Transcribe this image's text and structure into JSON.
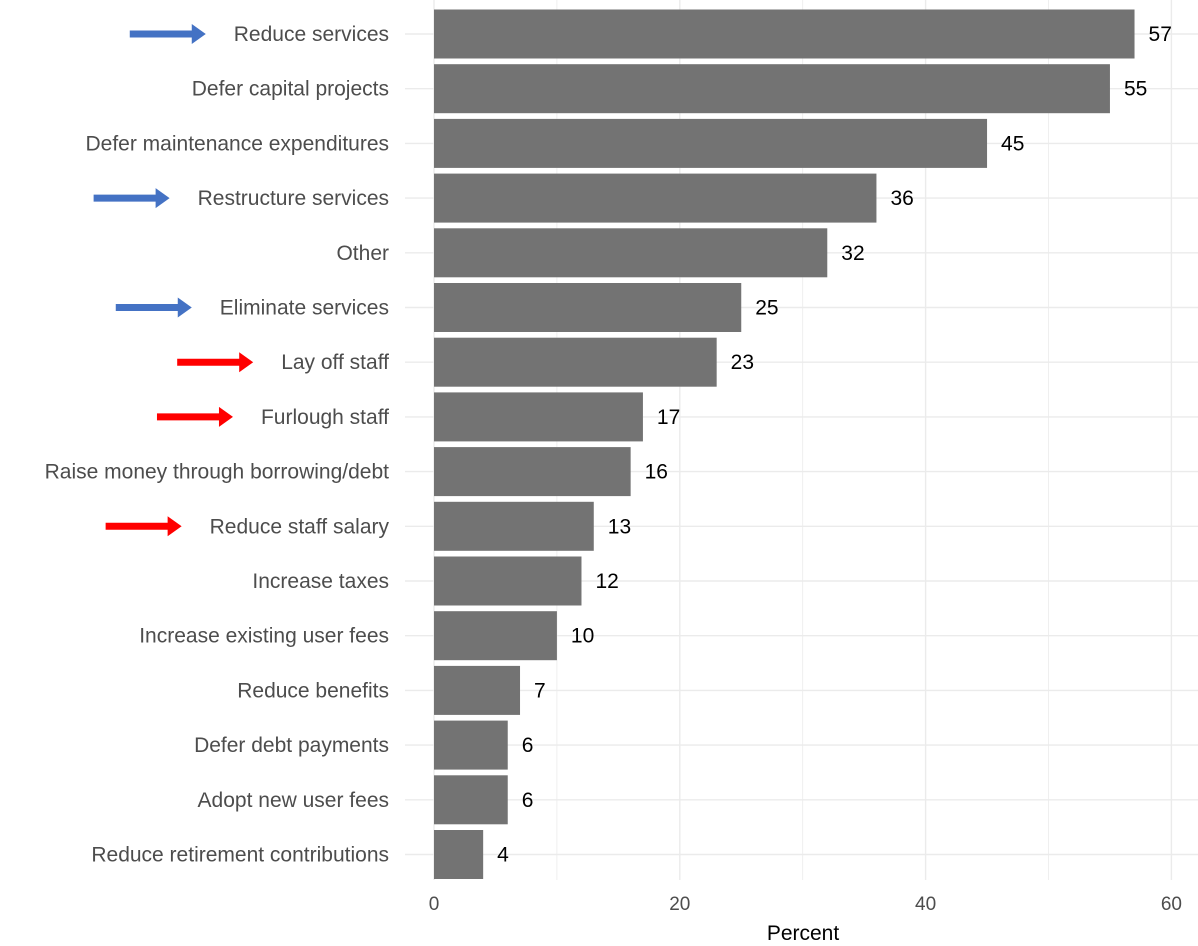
{
  "chart_data": {
    "type": "bar",
    "orientation": "horizontal",
    "categories": [
      "Reduce services",
      "Defer capital projects",
      "Defer maintenance expenditures",
      "Restructure services",
      "Other",
      "Eliminate services",
      "Lay off staff",
      "Furlough staff",
      "Raise money through borrowing/debt",
      "Reduce staff salary",
      "Increase taxes",
      "Increase existing user fees",
      "Reduce benefits",
      "Defer debt payments",
      "Adopt new user fees",
      "Reduce retirement contributions"
    ],
    "values": [
      57,
      55,
      45,
      36,
      32,
      25,
      23,
      17,
      16,
      13,
      12,
      10,
      7,
      6,
      6,
      4
    ],
    "data_labels": [
      "57",
      "55",
      "45",
      "36",
      "32",
      "25",
      "23",
      "17",
      "16",
      "13",
      "12",
      "10",
      "7",
      "6",
      "6",
      "4"
    ],
    "arrows": [
      "blue",
      "none",
      "none",
      "blue",
      "none",
      "blue",
      "red",
      "red",
      "none",
      "red",
      "none",
      "none",
      "none",
      "none",
      "none",
      "none"
    ],
    "xlabel": "Percent",
    "xlim": [
      0,
      62
    ],
    "xticks": [
      0,
      20,
      40,
      60
    ],
    "xtick_labels": [
      "0",
      "20",
      "40",
      "60"
    ],
    "grid": true,
    "colors": {
      "bar": "#737373",
      "grid": "#ebebeb",
      "arrow_blue": "#4472c4",
      "arrow_red": "#ff0000"
    }
  }
}
